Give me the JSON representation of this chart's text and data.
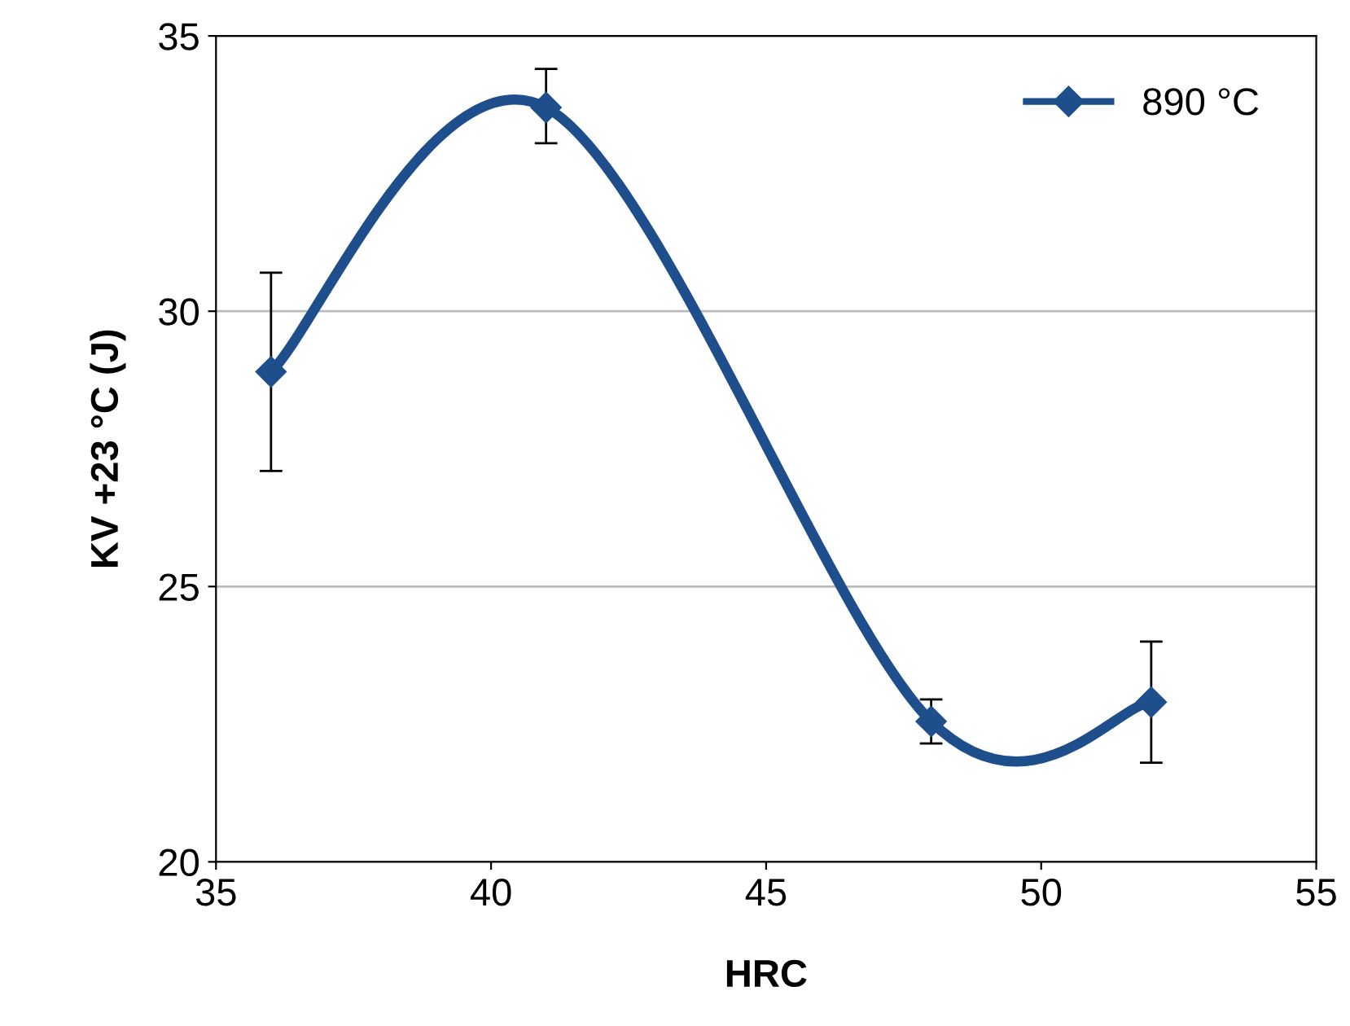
{
  "chart_data": {
    "type": "line",
    "xlabel": "HRC",
    "ylabel": "KV +23 °C (J)",
    "series": [
      {
        "name": "890 °C",
        "color": "#1f4e8c",
        "x": [
          36,
          41,
          48,
          52
        ],
        "values": [
          28.9,
          33.7,
          22.55,
          22.9
        ],
        "errors": [
          [
            27.1,
            30.7
          ],
          [
            33.05,
            34.4
          ],
          [
            22.15,
            22.95
          ],
          [
            21.8,
            24.0
          ]
        ]
      }
    ],
    "xlim": [
      35,
      55
    ],
    "xticks": [
      35,
      40,
      45,
      50,
      55
    ],
    "ylim": [
      20,
      35
    ],
    "yticks": [
      20,
      25,
      30,
      35
    ],
    "grid": "y",
    "legend": "top right",
    "marker": "diamond",
    "line_style": "solid"
  }
}
